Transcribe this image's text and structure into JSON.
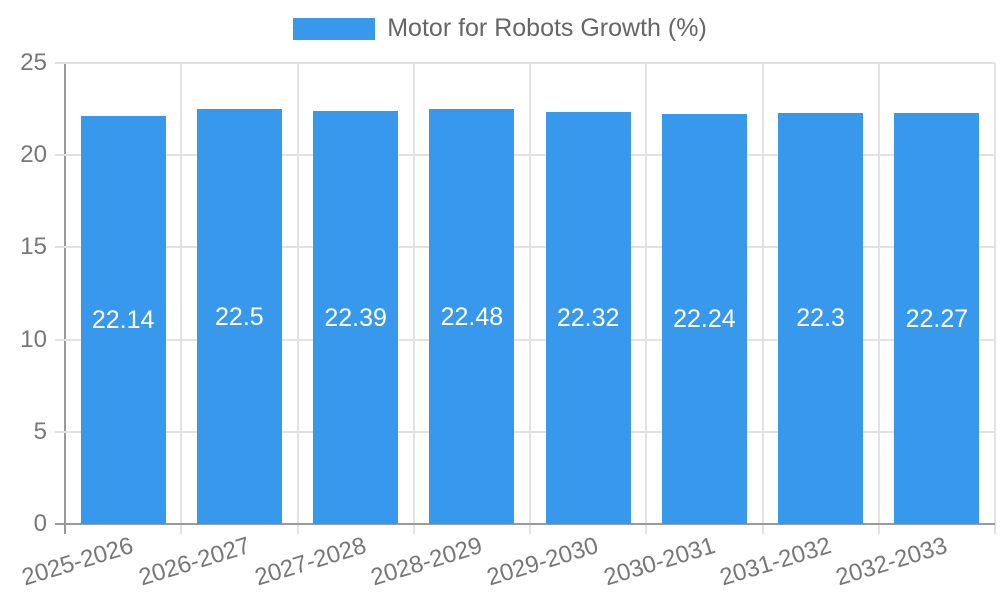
{
  "legend": {
    "label": "Motor for Robots Growth (%)"
  },
  "chart_data": {
    "type": "bar",
    "title": "Motor for Robots Growth (%)",
    "legend_position": "top",
    "categories": [
      "2025-2026",
      "2026-2027",
      "2027-2028",
      "2028-2029",
      "2029-2030",
      "2030-2031",
      "2031-2032",
      "2032-2033"
    ],
    "values": [
      22.14,
      22.5,
      22.39,
      22.48,
      22.32,
      22.24,
      22.3,
      22.27
    ],
    "value_labels_visible": true,
    "xlabel": "",
    "ylabel": "",
    "ylim": [
      0,
      25
    ],
    "yticks": [
      0,
      5,
      10,
      15,
      20,
      25
    ],
    "grid": true,
    "colors": {
      "bar": "#3899EC",
      "grid": "#E2E2E2",
      "axis": "#9A9A9A",
      "tick_text": "#777777",
      "legend_text": "#666666",
      "value_label_text": "#FFFFFF",
      "background": "#FFFFFF"
    }
  }
}
